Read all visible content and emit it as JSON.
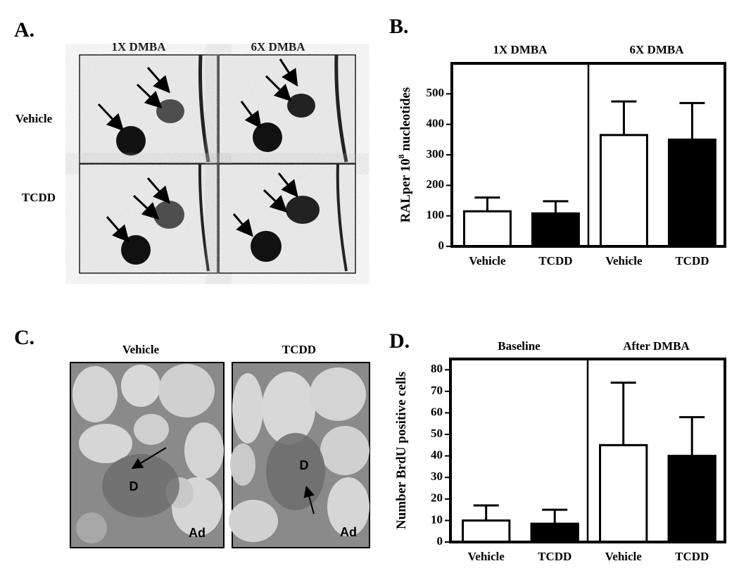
{
  "panel_a": {
    "letter": "A.",
    "columns": [
      "1X DMBA",
      "6X DMBA"
    ],
    "rows": [
      "Vehicle",
      "TCDD"
    ]
  },
  "panel_c": {
    "letter": "C.",
    "columns": [
      "Vehicle",
      "TCDD"
    ],
    "labels": [
      "D",
      "Ad",
      "D",
      "Ad"
    ]
  },
  "chart_data": [
    {
      "type": "bar",
      "letter": "B.",
      "groups": [
        "1X DMBA",
        "6X DMBA"
      ],
      "categories": [
        "Vehicle",
        "TCDD",
        "Vehicle",
        "TCDD"
      ],
      "values": [
        115,
        108,
        365,
        350
      ],
      "errors": [
        45,
        40,
        110,
        120
      ],
      "colors": [
        "#ffffff",
        "#000000",
        "#ffffff",
        "#000000"
      ],
      "ylabel": [
        "RALper 10",
        "8",
        " nucleotides"
      ],
      "ylim": [
        0,
        600
      ],
      "yticks": [
        0,
        100,
        200,
        300,
        400,
        500
      ]
    },
    {
      "type": "bar",
      "letter": "D.",
      "groups": [
        "Baseline",
        "After  DMBA"
      ],
      "categories": [
        "Vehicle",
        "TCDD",
        "Vehicle",
        "TCDD"
      ],
      "values": [
        10,
        8.5,
        45,
        40
      ],
      "errors": [
        7,
        6.5,
        29,
        18
      ],
      "colors": [
        "#ffffff",
        "#000000",
        "#ffffff",
        "#000000"
      ],
      "ylabel": [
        "Number BrdU positive cells"
      ],
      "ylim": [
        0,
        85
      ],
      "yticks": [
        0,
        10,
        20,
        30,
        40,
        50,
        60,
        70,
        80
      ]
    }
  ]
}
